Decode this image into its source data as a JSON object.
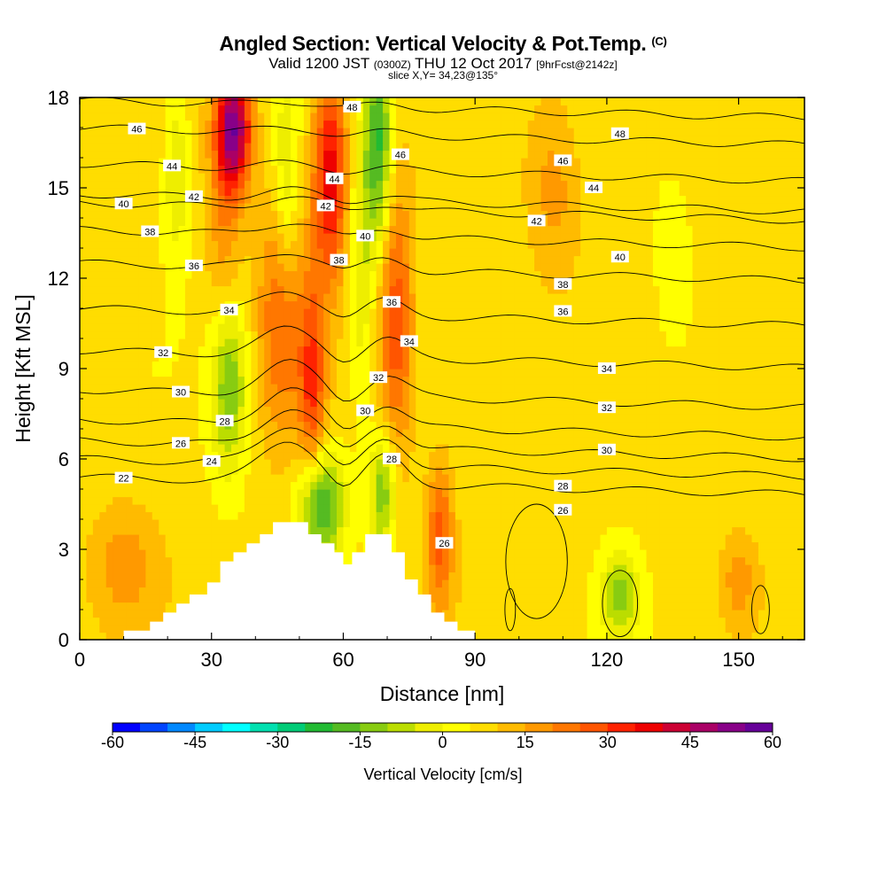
{
  "title": {
    "main": "Angled Section: Vertical Velocity & Pot.Temp.",
    "copyright": "(C)",
    "valid_prefix": "Valid 1200 JST",
    "valid_utc": "(0300Z)",
    "valid_date": "THU 12 Oct 2017",
    "forecast": "[9hrFcst@2142z]",
    "slice": "slice X,Y= 34,23@135°"
  },
  "colors": {
    "palette": [
      "#0000ff",
      "#0044ff",
      "#0088ff",
      "#00ccff",
      "#00ffff",
      "#00e0b0",
      "#00cc77",
      "#22bb33",
      "#55bb22",
      "#88cc11",
      "#bbdd00",
      "#eeee00",
      "#ffff00",
      "#ffdd00",
      "#ffbb00",
      "#ff9900",
      "#ff7700",
      "#ff5500",
      "#ff2200",
      "#ee0000",
      "#cc0033",
      "#aa0066",
      "#880088",
      "#660099"
    ],
    "contour": "#000000",
    "terrain": "#ffffff"
  },
  "chart_data": {
    "type": "heatmap",
    "xlabel": "Distance [nm]",
    "ylabel": "Height [Kft MSL]",
    "xlim": [
      0,
      165
    ],
    "ylim": [
      0,
      18
    ],
    "xticks": [
      "0",
      "30",
      "60",
      "90",
      "120",
      "150"
    ],
    "yticks": [
      "0",
      "3",
      "6",
      "9",
      "12",
      "15",
      "18"
    ],
    "xtick_values": [
      0,
      30,
      60,
      90,
      120,
      150
    ],
    "ytick_values": [
      0,
      3,
      6,
      9,
      12,
      15,
      18
    ],
    "colorbar": {
      "label": "Vertical Velocity [cm/s]",
      "min": -60,
      "max": 60,
      "step": 5,
      "tick_labels": [
        "-60",
        "-45",
        "-30",
        "-15",
        "0",
        "15",
        "30",
        "45",
        "60"
      ]
    },
    "field_features": [
      {
        "type": "updraft",
        "x": 35,
        "y": 17.0,
        "sx": 4,
        "sy": 2.0,
        "value": 45
      },
      {
        "type": "updraft",
        "x": 33,
        "y": 13.5,
        "sx": 4,
        "sy": 3.5,
        "value": 12
      },
      {
        "type": "updraft",
        "x": 46,
        "y": 11.0,
        "sx": 5,
        "sy": 4.0,
        "value": 20
      },
      {
        "type": "updraft",
        "x": 53,
        "y": 8.5,
        "sx": 3,
        "sy": 3.5,
        "value": 22
      },
      {
        "type": "updraft",
        "x": 57,
        "y": 15.5,
        "sx": 4,
        "sy": 3.5,
        "value": 32
      },
      {
        "type": "updraft",
        "x": 72,
        "y": 10.5,
        "sx": 4,
        "sy": 4.5,
        "value": 22
      },
      {
        "type": "updraft",
        "x": 82,
        "y": 3.5,
        "sx": 3,
        "sy": 2.5,
        "value": 20
      },
      {
        "type": "updraft",
        "x": 108,
        "y": 15.0,
        "sx": 6,
        "sy": 3.0,
        "value": 10
      },
      {
        "type": "updraft",
        "x": 10,
        "y": 2.5,
        "sx": 8,
        "sy": 2.0,
        "value": 10
      },
      {
        "type": "updraft",
        "x": 150,
        "y": 2.0,
        "sx": 4,
        "sy": 1.5,
        "value": 10
      },
      {
        "type": "downdraft",
        "x": 34,
        "y": 8.5,
        "sx": 4,
        "sy": 3.0,
        "value": -22
      },
      {
        "type": "downdraft",
        "x": 55,
        "y": 4.5,
        "sx": 5,
        "sy": 1.8,
        "value": -30
      },
      {
        "type": "downdraft",
        "x": 69,
        "y": 5.0,
        "sx": 3,
        "sy": 2.0,
        "value": -22
      },
      {
        "type": "downdraft",
        "x": 68,
        "y": 16.5,
        "sx": 3,
        "sy": 3.5,
        "value": -28
      },
      {
        "type": "downdraft",
        "x": 47,
        "y": 14.5,
        "sx": 3,
        "sy": 4.0,
        "value": -14
      },
      {
        "type": "downdraft",
        "x": 64,
        "y": 12.5,
        "sx": 3,
        "sy": 4.5,
        "value": -12
      },
      {
        "type": "downdraft",
        "x": 22,
        "y": 15.5,
        "sx": 3,
        "sy": 3.0,
        "value": -12
      },
      {
        "type": "downdraft",
        "x": 123,
        "y": 1.5,
        "sx": 4,
        "sy": 1.5,
        "value": -18
      },
      {
        "type": "downdraft",
        "x": 135,
        "y": 12.0,
        "sx": 5,
        "sy": 3.0,
        "value": -5
      }
    ],
    "terrain_profile": [
      [
        0,
        0
      ],
      [
        10,
        0
      ],
      [
        10,
        0.3
      ],
      [
        16,
        0.3
      ],
      [
        16,
        0.6
      ],
      [
        19,
        0.6
      ],
      [
        19,
        0.9
      ],
      [
        22,
        0.9
      ],
      [
        22,
        1.2
      ],
      [
        25,
        1.2
      ],
      [
        25,
        1.5
      ],
      [
        29,
        1.5
      ],
      [
        29,
        1.9
      ],
      [
        32,
        1.9
      ],
      [
        32,
        2.6
      ],
      [
        35,
        2.6
      ],
      [
        35,
        2.9
      ],
      [
        38,
        2.9
      ],
      [
        38,
        3.2
      ],
      [
        41,
        3.2
      ],
      [
        41,
        3.5
      ],
      [
        44,
        3.5
      ],
      [
        44,
        3.9
      ],
      [
        52,
        3.9
      ],
      [
        52,
        3.5
      ],
      [
        55,
        3.5
      ],
      [
        55,
        3.2
      ],
      [
        58,
        3.2
      ],
      [
        58,
        2.9
      ],
      [
        60,
        2.9
      ],
      [
        60,
        2.5
      ],
      [
        62,
        2.5
      ],
      [
        62,
        2.9
      ],
      [
        65,
        2.9
      ],
      [
        65,
        3.5
      ],
      [
        71,
        3.5
      ],
      [
        71,
        2.9
      ],
      [
        74,
        2.9
      ],
      [
        74,
        2.0
      ],
      [
        77,
        2.0
      ],
      [
        77,
        1.5
      ],
      [
        80,
        1.5
      ],
      [
        80,
        0.9
      ],
      [
        83,
        0.9
      ],
      [
        83,
        0.6
      ],
      [
        86,
        0.6
      ],
      [
        86,
        0.3
      ],
      [
        90,
        0.3
      ],
      [
        90,
        0
      ]
    ],
    "contours": [
      {
        "theta": 22,
        "y": 5.4,
        "label": "22",
        "lx": 10
      },
      {
        "theta": 24,
        "y": 6.0,
        "label": "24",
        "lx": 30
      },
      {
        "theta": 26,
        "y": 6.6,
        "label": "26",
        "lx": 23
      },
      {
        "theta": 28,
        "y": 7.3,
        "label": "28",
        "lx": 33
      },
      {
        "theta": 30,
        "y": 8.3,
        "label": "30",
        "lx": 23
      },
      {
        "theta": 32,
        "y": 9.6,
        "label": "32",
        "lx": 19
      },
      {
        "theta": 34,
        "y": 11.0,
        "label": "34",
        "lx": 34
      },
      {
        "theta": 36,
        "y": 12.5,
        "label": "36",
        "lx": 26
      },
      {
        "theta": 38,
        "y": 13.6,
        "label": "38",
        "lx": 16
      },
      {
        "theta": 40,
        "y": 14.5,
        "label": "40",
        "lx": 10
      },
      {
        "theta": 42,
        "y": 14.8,
        "label": "42",
        "lx": 26
      },
      {
        "theta": 44,
        "y": 15.8,
        "label": "44",
        "lx": 21
      },
      {
        "theta": 46,
        "y": 17.0,
        "label": "46",
        "lx": 13
      },
      {
        "theta": 48,
        "y": 17.9,
        "label": "48",
        "lx": 62
      }
    ],
    "extra_contour_labels": [
      {
        "text": "48",
        "x": 123,
        "y": 16.8
      },
      {
        "text": "46",
        "x": 110,
        "y": 15.9
      },
      {
        "text": "44",
        "x": 117,
        "y": 15.0
      },
      {
        "text": "42",
        "x": 104,
        "y": 13.9
      },
      {
        "text": "40",
        "x": 123,
        "y": 12.7
      },
      {
        "text": "38",
        "x": 110,
        "y": 11.8
      },
      {
        "text": "36",
        "x": 110,
        "y": 10.9
      },
      {
        "text": "34",
        "x": 120,
        "y": 9.0
      },
      {
        "text": "32",
        "x": 120,
        "y": 7.7
      },
      {
        "text": "30",
        "x": 120,
        "y": 6.3
      },
      {
        "text": "28",
        "x": 110,
        "y": 5.1
      },
      {
        "text": "26",
        "x": 110,
        "y": 4.3
      },
      {
        "text": "46",
        "x": 73,
        "y": 16.1
      },
      {
        "text": "44",
        "x": 58,
        "y": 15.3
      },
      {
        "text": "42",
        "x": 56,
        "y": 14.4
      },
      {
        "text": "40",
        "x": 65,
        "y": 13.4
      },
      {
        "text": "38",
        "x": 59,
        "y": 12.6
      },
      {
        "text": "36",
        "x": 71,
        "y": 11.2
      },
      {
        "text": "34",
        "x": 75,
        "y": 9.9
      },
      {
        "text": "32",
        "x": 68,
        "y": 8.7
      },
      {
        "text": "30",
        "x": 65,
        "y": 7.6
      },
      {
        "text": "28",
        "x": 71,
        "y": 6.0
      },
      {
        "text": "26",
        "x": 83,
        "y": 3.2
      }
    ]
  }
}
